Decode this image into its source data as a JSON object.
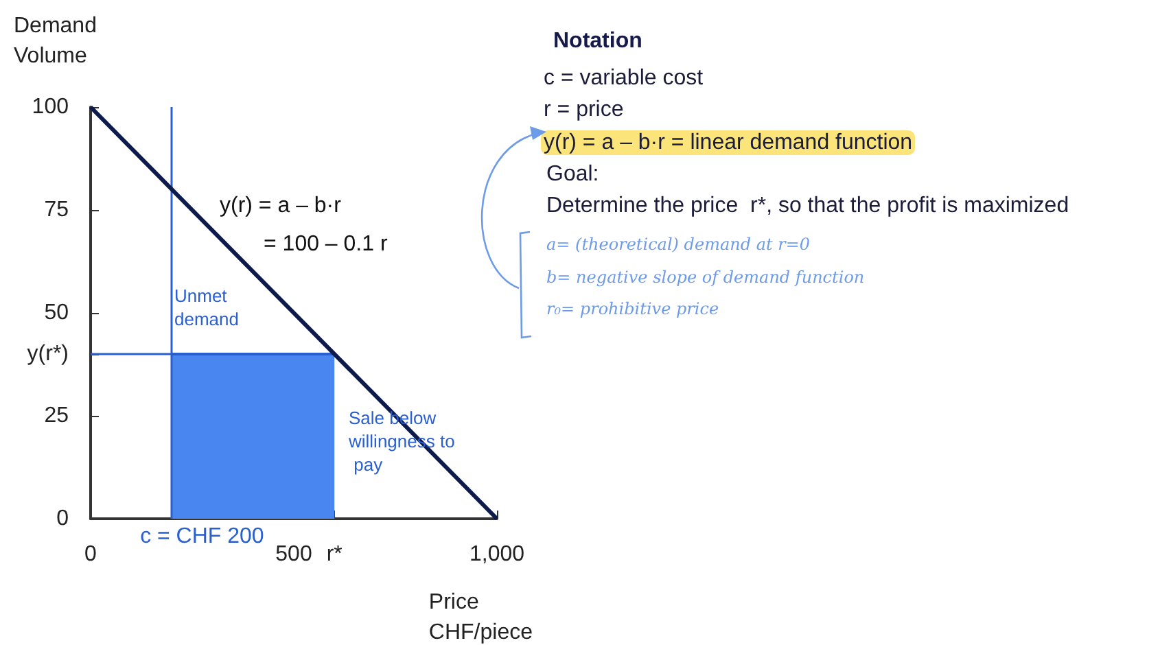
{
  "chart_data": {
    "type": "line",
    "xlabel": "Price CHF/piece",
    "ylabel": "Demand Volume",
    "xlim": [
      0,
      1000
    ],
    "ylim": [
      0,
      100
    ],
    "xticks": [
      0,
      500,
      {
        "value": 1000,
        "label": "1,000"
      },
      {
        "value": 600,
        "label": "r*"
      }
    ],
    "yticks": [
      0,
      25,
      {
        "value": 40,
        "label": "y(r*)"
      },
      50,
      75,
      100
    ],
    "grid": false,
    "marker": "none",
    "series": [
      {
        "type": "area",
        "color": "#4a86f0",
        "x": [
          200,
          600
        ],
        "values": [
          40,
          40
        ]
      },
      {
        "color": "#0d1b4c",
        "x": [
          0,
          1000
        ],
        "values": [
          100,
          0
        ]
      }
    ],
    "ref_lines": [
      {
        "axis": "x",
        "value": 200,
        "label": "c = CHF 200",
        "color": "#2a5fd0"
      },
      {
        "axis": "y",
        "value": 40,
        "color": "#2a5fd0"
      }
    ],
    "annotations": [
      "y(r) = a – b·r",
      "= 100 – 0.1 r",
      "Unmet demand",
      "Sale below willingness to pay",
      "Notation",
      "c = variable cost",
      "r = price",
      "y(r) = a – b·r = linear demand function",
      "Goal:",
      "Determine the price  r*, so that the profit is maximized",
      "a= (theoretical) demand at r=0",
      "b= negative slope of demand function",
      "r₀= prohibitive price"
    ]
  }
}
